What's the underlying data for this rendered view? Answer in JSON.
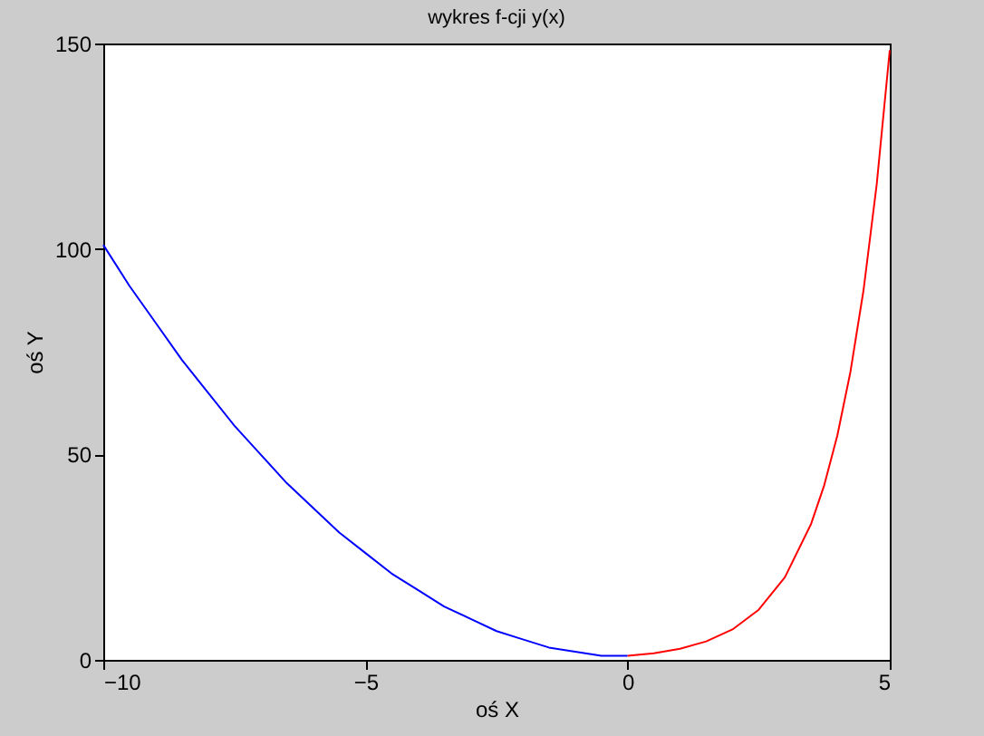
{
  "chart_data": {
    "type": "line",
    "title": "wykres f-cji y(x)",
    "xlabel": "oś X",
    "ylabel": "oś Y",
    "xlim": [
      -10,
      5
    ],
    "ylim": [
      0,
      150
    ],
    "xticks": [
      -10,
      -5,
      0,
      5
    ],
    "yticks": [
      0,
      50,
      100,
      150
    ],
    "grid": false,
    "marker": "none",
    "line_style": "solid",
    "series": [
      {
        "color": "#0000ff",
        "x": [
          -10,
          -9.5,
          -9,
          -8.5,
          -8,
          -7.5,
          -7,
          -6.5,
          -6,
          -5.5,
          -5,
          -4.5,
          -4,
          -3.5,
          -3,
          -2.5,
          -2,
          -1.5,
          -1,
          -0.5,
          0
        ],
        "values": [
          101,
          91,
          82,
          73,
          65,
          57,
          50,
          43,
          37,
          31,
          26,
          21,
          17,
          13,
          10,
          7,
          5,
          3,
          2,
          1,
          1
        ]
      },
      {
        "color": "#ff0000",
        "x": [
          0,
          0.5,
          1,
          1.5,
          2,
          2.5,
          3,
          3.5,
          3.75,
          4,
          4.25,
          4.5,
          4.75,
          5
        ],
        "values": [
          1,
          1.6,
          2.7,
          4.5,
          7.4,
          12.2,
          20.1,
          33.1,
          42.5,
          54.6,
          70.1,
          90,
          115.6,
          148.4
        ]
      }
    ]
  }
}
